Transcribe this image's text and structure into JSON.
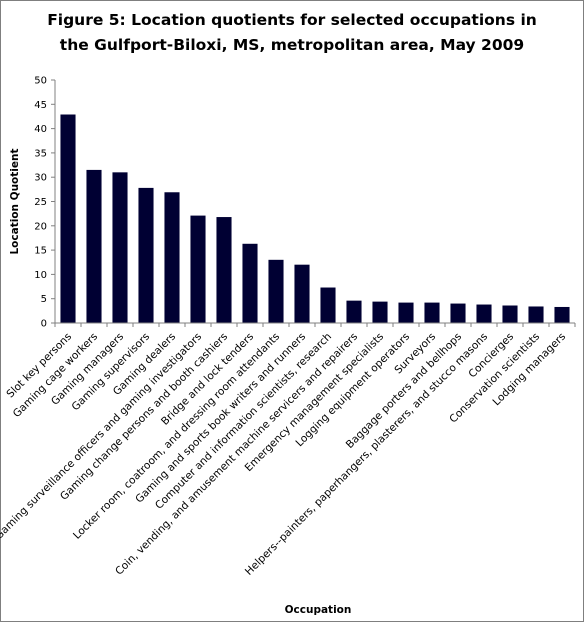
{
  "chart_data": {
    "type": "bar",
    "title_line1": "Figure 5:  Location quotients for selected occupations in",
    "title_line2": "the Gulfport-Biloxi, MS, metropolitan area, May 2009",
    "xlabel": "Occupation",
    "ylabel": "Location Quotient",
    "ylim": [
      0,
      50
    ],
    "yticks": [
      0,
      5,
      10,
      15,
      20,
      25,
      30,
      35,
      40,
      45,
      50
    ],
    "grid": false,
    "bar_color": "#000033",
    "categories": [
      "Slot key persons",
      "Gaming cage workers",
      "Gaming managers",
      "Gaming supervisors",
      "Gaming dealers",
      "Gaming surveillance officers and gaming investigators",
      "Gaming change persons and booth cashiers",
      "Bridge and lock tenders",
      "Locker room, coatroom, and dressing room attendants",
      "Gaming and sports book writers and runners",
      "Computer and information scientists, research",
      "Coin, vending, and amusement machine servicers and repairers",
      "Emergency management specialists",
      "Logging equipment operators",
      "Surveyors",
      "Baggage porters and bellhops",
      "Helpers--painters, paperhangers, plasterers, and stucco masons",
      "Concierges",
      "Conservation scientists",
      "Lodging managers"
    ],
    "values": [
      42.9,
      31.5,
      31.0,
      27.8,
      26.9,
      22.1,
      21.8,
      16.3,
      13.0,
      12.0,
      7.3,
      4.6,
      4.4,
      4.2,
      4.2,
      4.0,
      3.8,
      3.6,
      3.4,
      3.3
    ]
  }
}
